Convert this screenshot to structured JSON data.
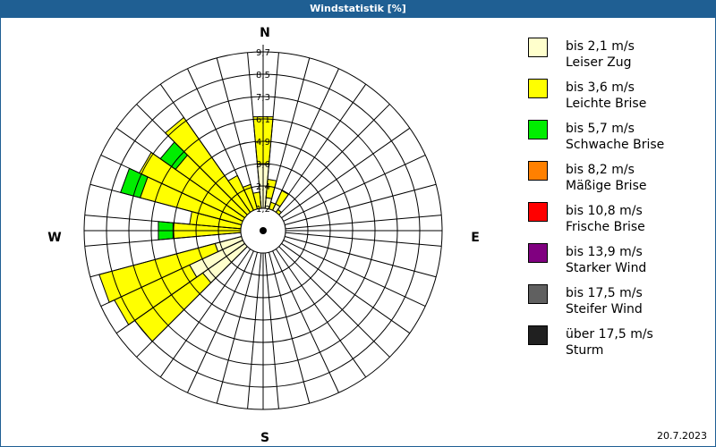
{
  "header": {
    "title": "Windstatistik [%]"
  },
  "footer": {
    "date": "20.7.2023"
  },
  "cardinals": {
    "n": "N",
    "e": "E",
    "s": "S",
    "w": "W"
  },
  "legend": [
    {
      "range": "bis 2,1 m/s",
      "name": "Leiser Zug",
      "color": "#ffffcc"
    },
    {
      "range": "bis 3,6 m/s",
      "name": "Leichte Brise",
      "color": "#ffff00"
    },
    {
      "range": "bis 5,7 m/s",
      "name": "Schwache Brise",
      "color": "#00ee00"
    },
    {
      "range": "bis 8,2 m/s",
      "name": "Mäßige Brise",
      "color": "#ff8000"
    },
    {
      "range": "bis 10,8 m/s",
      "name": "Frische Brise",
      "color": "#ff0000"
    },
    {
      "range": "bis 13,9 m/s",
      "name": "Starker Wind",
      "color": "#800080"
    },
    {
      "range": "bis 17,5 m/s",
      "name": "Steifer Wind",
      "color": "#606060"
    },
    {
      "range": "über 17,5 m/s",
      "name": "Sturm",
      "color": "#202020"
    }
  ],
  "chart_data": {
    "type": "polar-bar (wind rose, stacked)",
    "title": "Windstatistik [%]",
    "unit": "%",
    "sector_width_deg": 10,
    "radial_ticks": [
      "1,2",
      "2,4",
      "3,6",
      "4,9",
      "6,1",
      "7,3",
      "8,5",
      "9,7"
    ],
    "radial_max": 9.7,
    "calm_circle_radius_fraction": 0.125,
    "series_names": [
      "bis 2,1 m/s",
      "bis 3,6 m/s",
      "bis 5,7 m/s"
    ],
    "sectors": [
      {
        "dir": 0,
        "values": [
          3.6,
          2.6,
          0
        ]
      },
      {
        "dir": 10,
        "values": [
          1.8,
          1.0,
          0
        ]
      },
      {
        "dir": 20,
        "values": [
          1.0,
          0.6,
          0
        ]
      },
      {
        "dir": 30,
        "values": [
          1.6,
          0.8,
          0
        ]
      },
      {
        "dir": 40,
        "values": [
          0.9,
          0.5,
          0
        ]
      },
      {
        "dir": 50,
        "values": [
          0.4,
          0,
          0
        ]
      },
      {
        "dir": 60,
        "values": [
          0.3,
          0,
          0
        ]
      },
      {
        "dir": 70,
        "values": [
          0.2,
          0,
          0
        ]
      },
      {
        "dir": 80,
        "values": [
          0.2,
          0,
          0
        ]
      },
      {
        "dir": 90,
        "values": [
          0,
          0,
          0
        ]
      },
      {
        "dir": 100,
        "values": [
          0,
          0,
          0
        ]
      },
      {
        "dir": 110,
        "values": [
          0,
          0,
          0
        ]
      },
      {
        "dir": 120,
        "values": [
          0,
          0,
          0
        ]
      },
      {
        "dir": 130,
        "values": [
          0,
          0,
          0
        ]
      },
      {
        "dir": 140,
        "values": [
          0,
          0,
          0
        ]
      },
      {
        "dir": 150,
        "values": [
          0,
          0,
          0
        ]
      },
      {
        "dir": 160,
        "values": [
          0,
          0,
          0
        ]
      },
      {
        "dir": 170,
        "values": [
          0,
          0,
          0
        ]
      },
      {
        "dir": 180,
        "values": [
          0,
          0,
          0
        ]
      },
      {
        "dir": 190,
        "values": [
          0,
          0,
          0
        ]
      },
      {
        "dir": 200,
        "values": [
          0,
          0,
          0
        ]
      },
      {
        "dir": 210,
        "values": [
          0.3,
          0,
          0
        ]
      },
      {
        "dir": 220,
        "values": [
          0.6,
          0,
          0
        ]
      },
      {
        "dir": 230,
        "values": [
          4.0,
          4.5,
          0
        ]
      },
      {
        "dir": 240,
        "values": [
          4.4,
          4.5,
          0
        ]
      },
      {
        "dir": 250,
        "values": [
          2.7,
          6.5,
          0
        ]
      },
      {
        "dir": 260,
        "values": [
          0.5,
          0.5,
          0
        ]
      },
      {
        "dir": 270,
        "values": [
          0.4,
          4.5,
          0.8
        ]
      },
      {
        "dir": 280,
        "values": [
          0.4,
          3.6,
          0
        ]
      },
      {
        "dir": 290,
        "values": [
          0.4,
          6.5,
          1.1
        ]
      },
      {
        "dir": 300,
        "values": [
          0.4,
          7.0,
          0
        ]
      },
      {
        "dir": 310,
        "values": [
          0.4,
          5.4,
          1.0
        ]
      },
      {
        "dir": 320,
        "values": [
          0.4,
          7.1,
          0
        ]
      },
      {
        "dir": 330,
        "values": [
          0.4,
          2.9,
          0
        ]
      },
      {
        "dir": 340,
        "values": [
          0.4,
          2.2,
          0
        ]
      },
      {
        "dir": 350,
        "values": [
          0.8,
          1.3,
          0
        ]
      }
    ],
    "legend_position": "right",
    "grid": true
  }
}
